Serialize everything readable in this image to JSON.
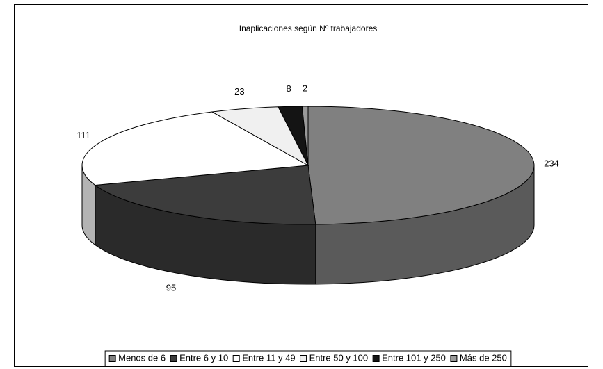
{
  "chart_data": {
    "type": "pie",
    "title": "Inaplicaciones según Nº trabajadores",
    "categories": [
      "Menos de 6",
      "Entre 6 y 10",
      "Entre 11 y 49",
      "Entre 50 y 100",
      "Entre 101 y 250",
      "Más de 250"
    ],
    "values": [
      234,
      95,
      111,
      23,
      8,
      2
    ],
    "colors": [
      "#808080",
      "#3c3c3c",
      "#ffffff",
      "#f0f0f0",
      "#141414",
      "#9a9a9a"
    ],
    "legend": "bottom"
  }
}
